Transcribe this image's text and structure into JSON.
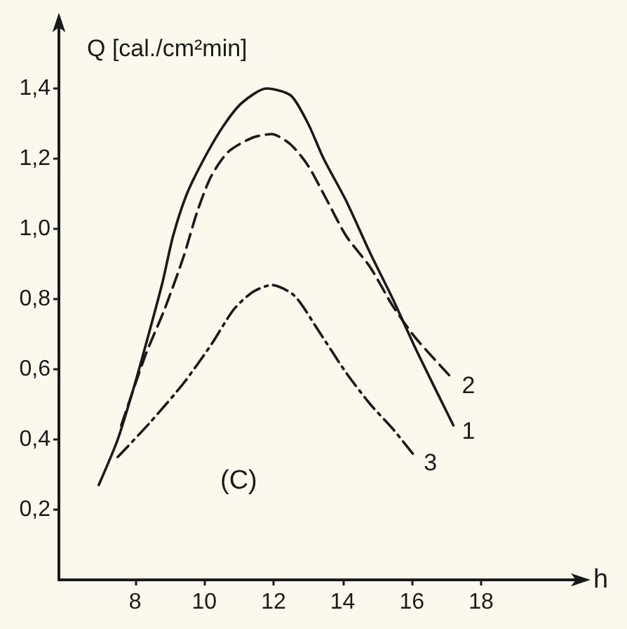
{
  "chart_data": {
    "type": "line",
    "ylabel": "Q [cal./cm²min]",
    "xlabel": "h",
    "annotations": [
      "(C)"
    ],
    "xlim": [
      5.8,
      21
    ],
    "xticks": [
      8,
      10,
      12,
      14,
      16,
      18
    ],
    "ylim": [
      0,
      1.6
    ],
    "yticks": [
      {
        "value": 0.2,
        "label": "0,2"
      },
      {
        "value": 0.4,
        "label": "0,4"
      },
      {
        "value": 0.6,
        "label": "0,6"
      },
      {
        "value": 0.8,
        "label": "0,8"
      },
      {
        "value": 1.0,
        "label": "1,0"
      },
      {
        "value": 1.2,
        "label": "1,2"
      },
      {
        "value": 1.4,
        "label": "1,4"
      }
    ],
    "series": [
      {
        "name": "1",
        "color": "#1a1a1a",
        "line_style": "solid",
        "x": [
          6.95,
          7.5,
          8.0,
          8.45,
          8.8,
          9.1,
          9.5,
          10.05,
          10.6,
          11.1,
          11.8,
          12.5,
          13.0,
          13.45,
          14.1,
          14.8,
          15.45,
          16.15,
          17.2
        ],
        "values": [
          0.27,
          0.4,
          0.56,
          0.72,
          0.85,
          0.98,
          1.1,
          1.21,
          1.3,
          1.36,
          1.4,
          1.38,
          1.3,
          1.2,
          1.08,
          0.93,
          0.8,
          0.65,
          0.44
        ]
      },
      {
        "name": "2",
        "color": "#1a1a1a",
        "line_style": "dashed",
        "x": [
          7.6,
          8.3,
          8.85,
          9.4,
          9.8,
          10.2,
          10.7,
          11.4,
          11.95,
          12.5,
          13.0,
          13.5,
          14.1,
          14.8,
          15.45,
          16.1,
          17.2
        ],
        "values": [
          0.44,
          0.64,
          0.77,
          0.92,
          1.05,
          1.15,
          1.22,
          1.26,
          1.27,
          1.24,
          1.18,
          1.09,
          0.98,
          0.89,
          0.78,
          0.69,
          0.57
        ]
      },
      {
        "name": "3",
        "color": "#1a1a1a",
        "line_style": "dashdot",
        "x": [
          7.5,
          8.45,
          9.4,
          10.2,
          10.85,
          11.4,
          11.95,
          12.6,
          13.3,
          14.1,
          14.8,
          15.45,
          16.1
        ],
        "values": [
          0.35,
          0.45,
          0.56,
          0.67,
          0.77,
          0.82,
          0.84,
          0.81,
          0.71,
          0.59,
          0.5,
          0.43,
          0.35
        ]
      }
    ]
  }
}
